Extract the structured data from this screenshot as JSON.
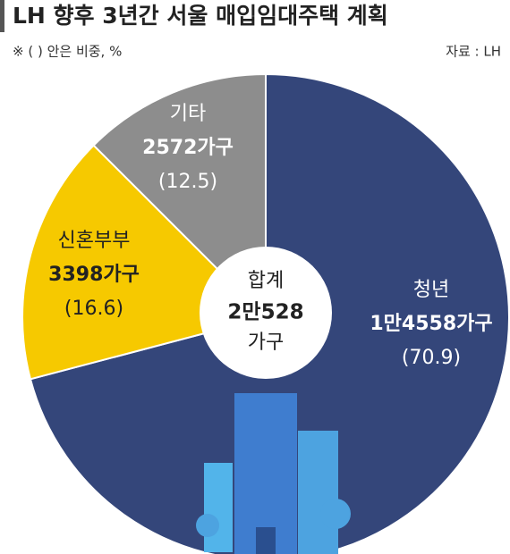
{
  "chart_data": {
    "type": "pie",
    "title": "LH 향후 3년간 서울 매입임대주택 계획",
    "subtitle": "※ ( ) 안은 비중, %",
    "source": "자료 : LH",
    "categories": [
      "청년",
      "신혼부부",
      "기타"
    ],
    "values": [
      70.9,
      16.6,
      12.5
    ],
    "value_labels": [
      "(70.9)",
      "(16.6)",
      "(12.5)"
    ],
    "households": [
      "1만4558가구",
      "3398가구",
      "2572가구"
    ],
    "colors": [
      "#34467a",
      "#f6c900",
      "#8d8d8d"
    ],
    "center_text": [
      "합계",
      "2만528",
      "가구"
    ]
  }
}
